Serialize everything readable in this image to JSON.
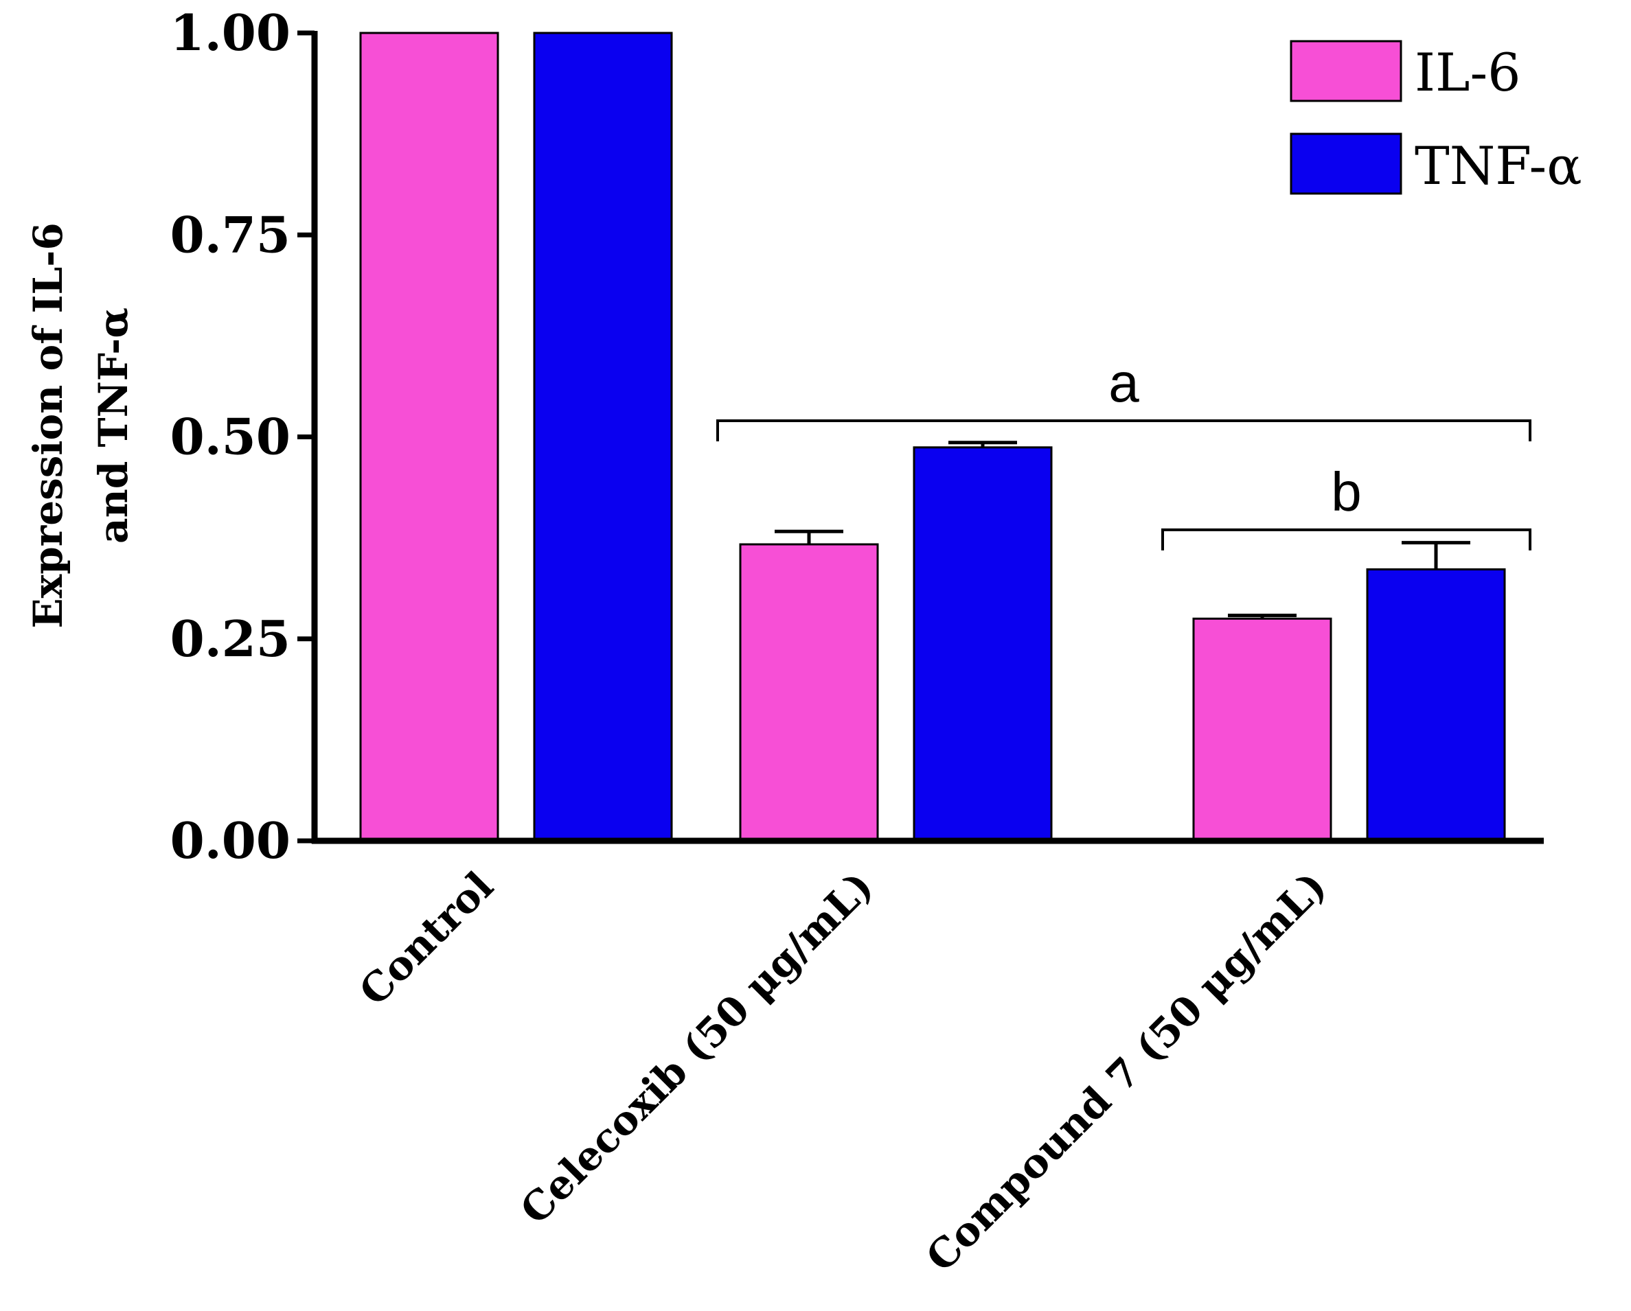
{
  "chart_data": {
    "type": "bar",
    "title": "",
    "xlabel": "",
    "ylabel_lines": [
      "Expression of IL-6",
      "and TNF-α"
    ],
    "ylim": [
      0,
      1.0
    ],
    "yticks": [
      "0.00",
      "0.25",
      "0.50",
      "0.75",
      "1.00"
    ],
    "ytick_values": [
      0,
      0.25,
      0.5,
      0.75,
      1.0
    ],
    "categories": [
      "Control",
      "Celecoxib (50 μg/mL)",
      "Compound 7 (50 μg/mL)"
    ],
    "series": [
      {
        "name": "IL-6",
        "color": "#f74fd6",
        "values": [
          1.0,
          0.367,
          0.275
        ],
        "errors": [
          0,
          0.016,
          0.004
        ]
      },
      {
        "name": "TNF-α",
        "color": "#0a00f0",
        "values": [
          1.0,
          0.487,
          0.336
        ],
        "errors": [
          0,
          0.006,
          0.033
        ]
      }
    ],
    "annotations": [
      {
        "label": "a",
        "from_category": 1,
        "to_category": 2,
        "bracket_value": 0.52
      },
      {
        "label": "b",
        "from_category": 2,
        "to_category": 2,
        "bracket_value": 0.385
      }
    ],
    "legend_position": "top-right"
  }
}
